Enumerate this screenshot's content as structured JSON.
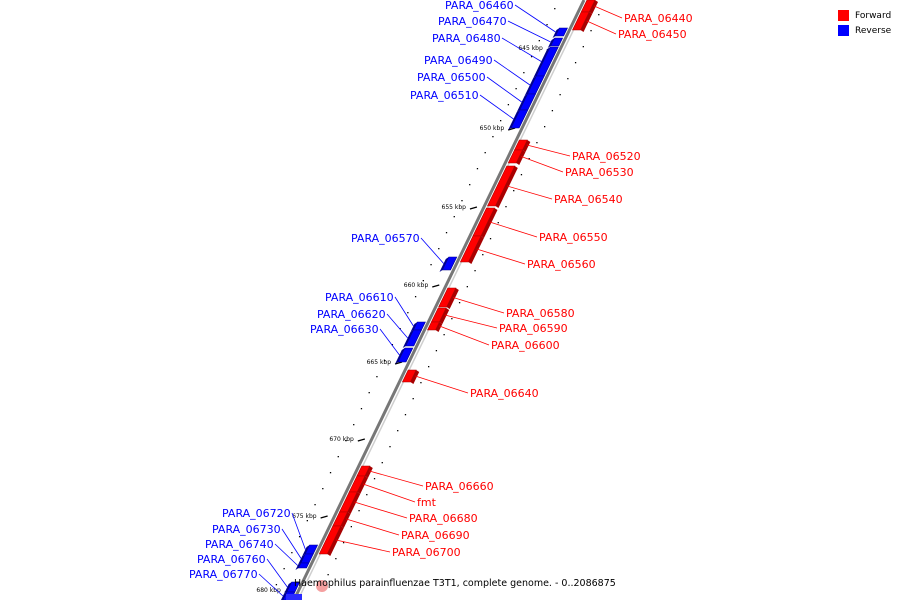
{
  "caption": "Haemophilus parainfluenzae T3T1, complete genome. - 0..2086875",
  "legend": [
    {
      "label": "Forward",
      "color": "#ff0000"
    },
    {
      "label": "Reverse",
      "color": "#0000ff"
    }
  ],
  "colors": {
    "forward": "#ff0000",
    "reverse": "#0000ff",
    "backbone": "#888888"
  },
  "ticks": [
    "645 kbp",
    "650 kbp",
    "655 kbp",
    "660 kbp",
    "665 kbp",
    "670 kbp",
    "675 kbp",
    "680 kbp"
  ],
  "genes": [
    {
      "label": "PARA_06440",
      "strand": "forward"
    },
    {
      "label": "PARA_06450",
      "strand": "forward"
    },
    {
      "label": "PARA_06460",
      "strand": "reverse"
    },
    {
      "label": "PARA_06470",
      "strand": "reverse"
    },
    {
      "label": "PARA_06480",
      "strand": "reverse"
    },
    {
      "label": "PARA_06490",
      "strand": "reverse"
    },
    {
      "label": "PARA_06500",
      "strand": "reverse"
    },
    {
      "label": "PARA_06510",
      "strand": "reverse"
    },
    {
      "label": "PARA_06520",
      "strand": "forward"
    },
    {
      "label": "PARA_06530",
      "strand": "forward"
    },
    {
      "label": "PARA_06540",
      "strand": "forward"
    },
    {
      "label": "PARA_06550",
      "strand": "forward"
    },
    {
      "label": "PARA_06560",
      "strand": "forward"
    },
    {
      "label": "PARA_06570",
      "strand": "reverse"
    },
    {
      "label": "PARA_06580",
      "strand": "forward"
    },
    {
      "label": "PARA_06590",
      "strand": "forward"
    },
    {
      "label": "PARA_06600",
      "strand": "forward"
    },
    {
      "label": "PARA_06610",
      "strand": "reverse"
    },
    {
      "label": "PARA_06620",
      "strand": "reverse"
    },
    {
      "label": "PARA_06630",
      "strand": "reverse"
    },
    {
      "label": "PARA_06640",
      "strand": "forward"
    },
    {
      "label": "PARA_06660",
      "strand": "forward"
    },
    {
      "label": "fmt",
      "strand": "forward"
    },
    {
      "label": "PARA_06680",
      "strand": "forward"
    },
    {
      "label": "PARA_06690",
      "strand": "forward"
    },
    {
      "label": "PARA_06700",
      "strand": "forward"
    },
    {
      "label": "PARA_06720",
      "strand": "reverse"
    },
    {
      "label": "PARA_06730",
      "strand": "reverse"
    },
    {
      "label": "PARA_06740",
      "strand": "reverse"
    },
    {
      "label": "PARA_06760",
      "strand": "reverse"
    },
    {
      "label": "PARA_06770",
      "strand": "reverse"
    }
  ]
}
